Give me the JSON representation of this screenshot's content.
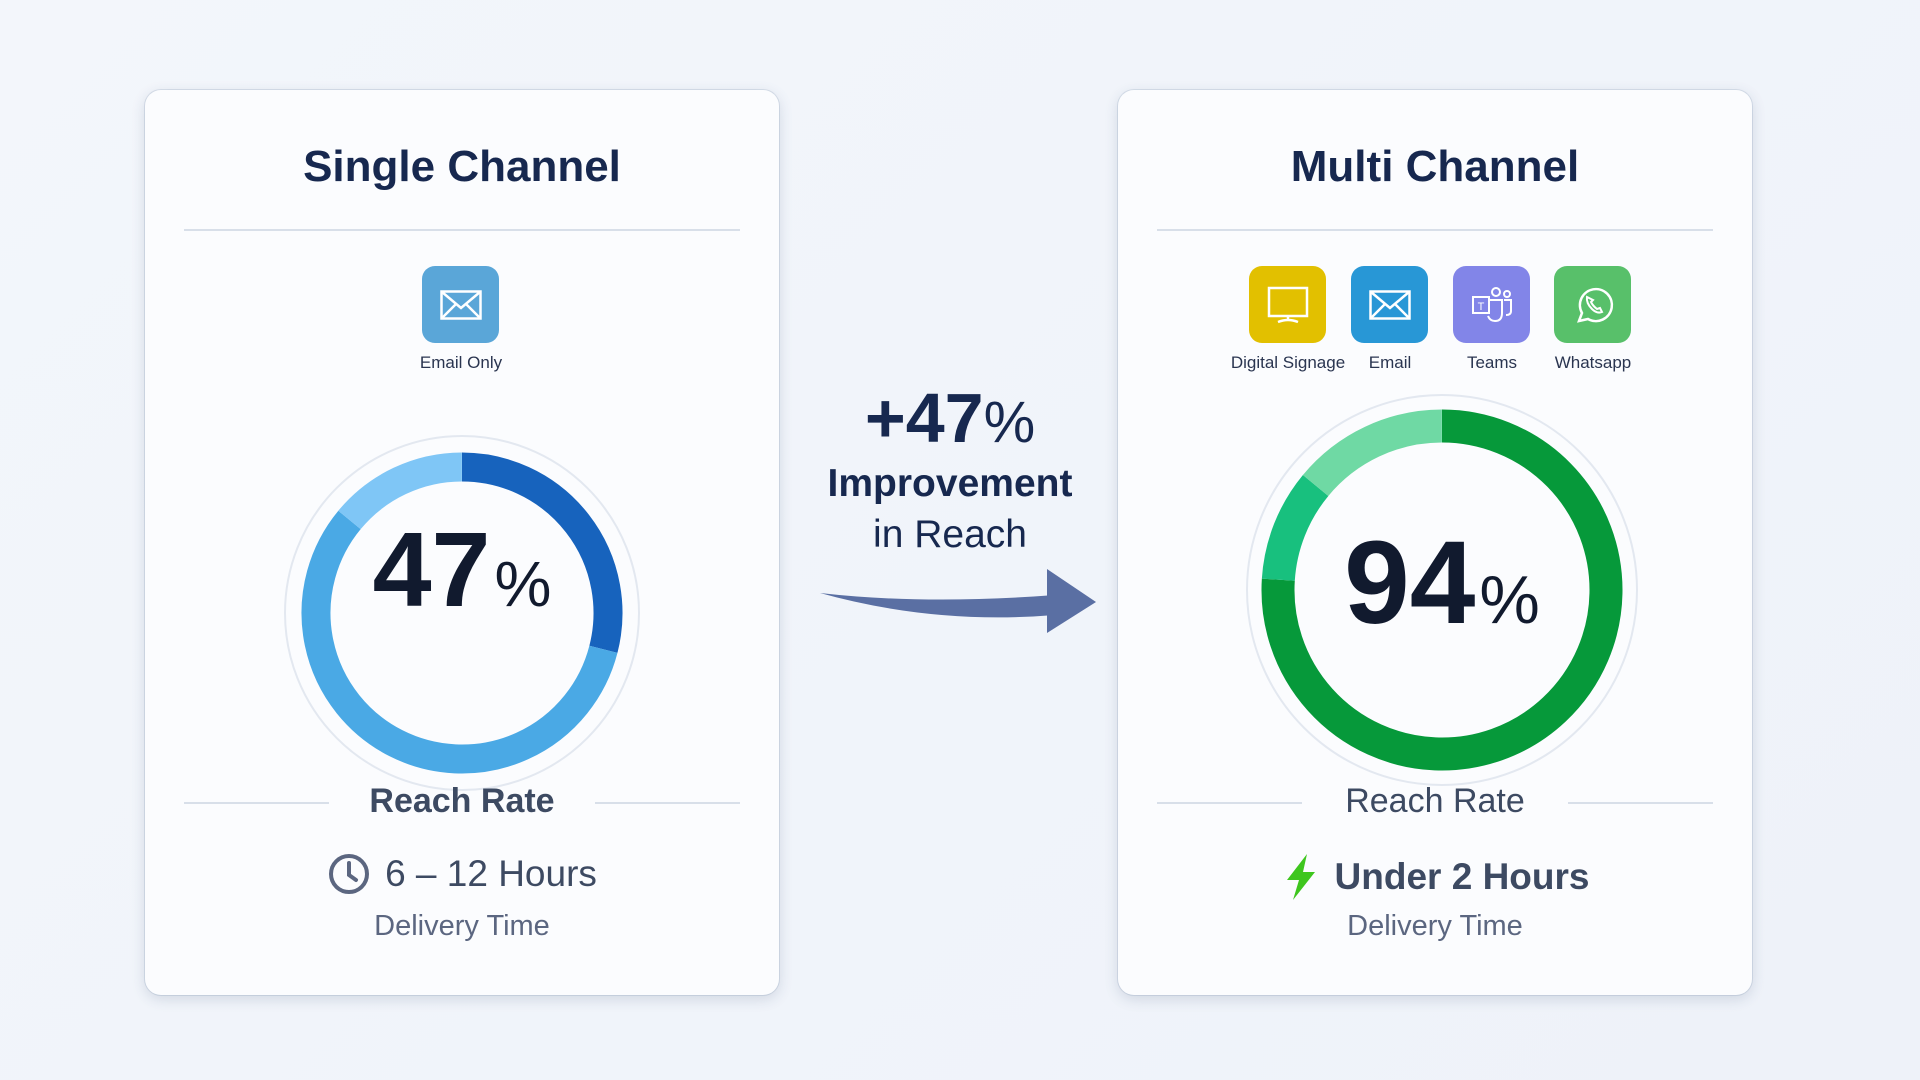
{
  "single": {
    "title": "Single Channel",
    "channels": [
      {
        "label": "Email Only",
        "icon": "email-icon",
        "color": "#5aa6d8"
      }
    ],
    "reach_value": "47",
    "reach_percent": 47,
    "percent_sign": "%",
    "reach_label": "Reach Rate",
    "time_icon": "clock-icon",
    "time": "6 – 12 Hours",
    "time_label": "Delivery Time",
    "ring_colors": [
      "#1763bd",
      "#4aa9e5",
      "#7fc6f6"
    ]
  },
  "improvement": {
    "value": "+47",
    "percent_sign": "%",
    "line1": "Improvement",
    "line2": "in Reach",
    "arrow_color": "#5a6fa3"
  },
  "multi": {
    "title": "Multi Channel",
    "channels": [
      {
        "label": "Digital Signage",
        "icon": "monitor-icon",
        "color": "#e2c000"
      },
      {
        "label": "Email",
        "icon": "email-icon",
        "color": "#2897d6"
      },
      {
        "label": "Teams",
        "icon": "teams-icon",
        "color": "#8285e8"
      },
      {
        "label": "Whatsapp",
        "icon": "whatsapp-icon",
        "color": "#58c06a"
      }
    ],
    "reach_value": "94",
    "reach_percent": 94,
    "percent_sign": "%",
    "reach_label": "Reach Rate",
    "time_icon": "lightning-bolt-icon",
    "time": "Under 2 Hours",
    "time_label": "Delivery Time",
    "ring_colors": [
      "#06993a",
      "#18c07e",
      "#6fd9a4"
    ]
  }
}
